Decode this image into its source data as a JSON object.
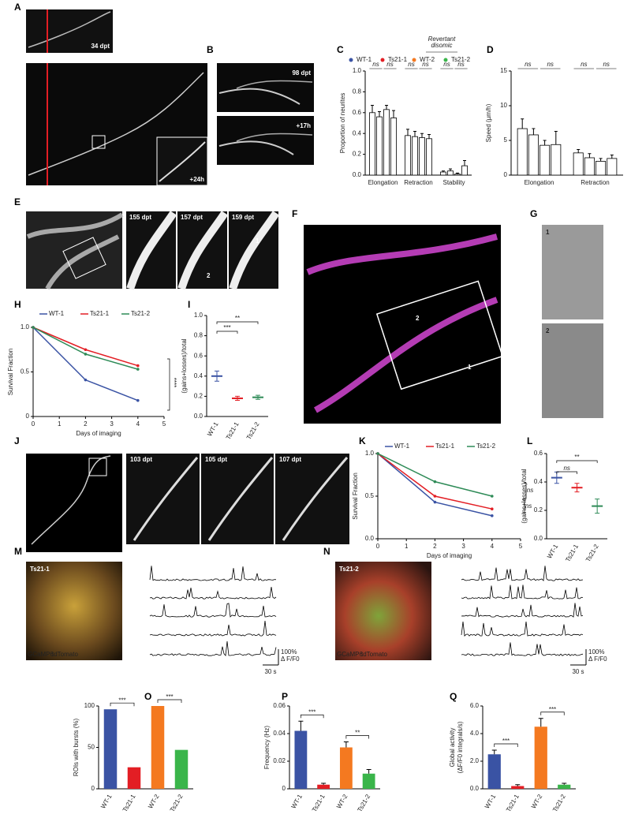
{
  "panel_labels": [
    "A",
    "B",
    "C",
    "D",
    "E",
    "F",
    "G",
    "H",
    "I",
    "J",
    "K",
    "L",
    "M",
    "N",
    "O",
    "P",
    "Q"
  ],
  "images": {
    "A": [
      "34 dpt",
      "+24h"
    ],
    "B": [
      "98 dpt",
      "+17h"
    ],
    "E": [
      "155 dpt",
      "157 dpt",
      "159 dpt",
      "1",
      "2"
    ],
    "F": [
      "2",
      "1"
    ],
    "G": [
      "1",
      "2"
    ],
    "J": [
      "103 dpt",
      "105 dpt",
      "107 dpt"
    ],
    "M": [
      "Ts21-1",
      "GCaMP6",
      "tdTomato",
      "100%",
      "Δ F/F0",
      "30 s"
    ],
    "N": [
      "Ts21-2",
      "GCaMP6",
      "tdTomato",
      "100%",
      "Δ F/F0",
      "30 s"
    ]
  },
  "chart_data": [
    {
      "type": "bar",
      "ylabel": "Proportion of neurites",
      "legend_note": [
        "Revertant",
        "disomic"
      ],
      "categories": [
        "Elongation",
        "Retraction",
        "Stability"
      ],
      "series": [
        {
          "name": "WT-1",
          "color": "#3a53a4",
          "values": [
            0.6,
            0.38,
            0.03
          ],
          "errors": [
            0.07,
            0.06,
            0.01
          ]
        },
        {
          "name": "Ts21-1",
          "color": "#e31e24",
          "values": [
            0.56,
            0.37,
            0.04
          ],
          "errors": [
            0.05,
            0.05,
            0.02
          ]
        },
        {
          "name": "WT-2",
          "color": "#f47920",
          "values": [
            0.63,
            0.36,
            0.01
          ],
          "errors": [
            0.04,
            0.04,
            0.01
          ]
        },
        {
          "name": "Ts21-2",
          "color": "#3ab54a",
          "values": [
            0.55,
            0.35,
            0.09
          ],
          "errors": [
            0.07,
            0.04,
            0.05
          ]
        }
      ],
      "ylim": [
        0,
        1
      ],
      "yticks": [
        {
          "value": 0,
          "label": "0.0"
        },
        0.2,
        0.4,
        0.6,
        0.8,
        {
          "value": 1,
          "label": "1.0"
        }
      ],
      "annotations": [
        "ns",
        "ns",
        "ns",
        "ns",
        "ns",
        "ns"
      ]
    },
    {
      "type": "bar",
      "ylabel": "Speed (µm/h)",
      "categories": [
        "Elongation",
        "Retraction"
      ],
      "series": [
        {
          "name": "WT-1",
          "color": "#3a53a4",
          "values": [
            6.7,
            3.2
          ],
          "errors": [
            1.4,
            0.5
          ]
        },
        {
          "name": "Ts21-1",
          "color": "#e31e24",
          "values": [
            5.8,
            2.5
          ],
          "errors": [
            0.9,
            0.6
          ]
        },
        {
          "name": "WT-2",
          "color": "#f47920",
          "values": [
            4.3,
            2.0
          ],
          "errors": [
            0.7,
            0.4
          ]
        },
        {
          "name": "Ts21-2",
          "color": "#3ab54a",
          "values": [
            4.4,
            2.4
          ],
          "errors": [
            1.9,
            0.5
          ]
        }
      ],
      "ylim": [
        0,
        15
      ],
      "yticks": [
        0,
        5,
        10,
        15
      ],
      "annotations": [
        "ns",
        "ns",
        "ns",
        "ns"
      ]
    },
    {
      "type": "line",
      "xlabel": "Days of imaging",
      "ylabel": "Survival Fraction",
      "x": [
        0,
        2,
        4
      ],
      "series": [
        {
          "name": "WT-1",
          "color": "#3a53a4",
          "values": [
            1,
            0.41,
            0.18
          ]
        },
        {
          "name": "Ts21-1",
          "color": "#e31e24",
          "values": [
            1,
            0.75,
            0.57
          ]
        },
        {
          "name": "Ts21-2",
          "color": "#2e8b57",
          "values": [
            1,
            0.7,
            0.53
          ]
        }
      ],
      "xlim": [
        0,
        5
      ],
      "xticks": [
        0,
        1,
        2,
        3,
        4,
        5
      ],
      "ylim": [
        0,
        1
      ],
      "yticks": [
        0,
        0.5,
        {
          "value": 1,
          "label": "1.0"
        }
      ],
      "annotations": [
        "****"
      ]
    },
    {
      "type": "scatter",
      "ylabel": "(gains+losses)/total",
      "categories": [
        "WT-1",
        "Ts21-1",
        "Ts21-2"
      ],
      "values": [
        0.4,
        0.18,
        0.19
      ],
      "errors": [
        0.05,
        0.02,
        0.02
      ],
      "colors": [
        "#3a53a4",
        "#e31e24",
        "#2e8b57"
      ],
      "ylim": [
        0,
        1
      ],
      "yticks": [
        {
          "value": 0,
          "label": "0.0"
        },
        0.2,
        0.4,
        0.6,
        0.8,
        {
          "value": 1,
          "label": "1.0"
        }
      ],
      "annotations": [
        "***",
        "**"
      ]
    },
    {
      "type": "line",
      "xlabel": "Days of imaging",
      "ylabel": "Survival Fraction",
      "x": [
        0,
        2,
        4
      ],
      "series": [
        {
          "name": "WT-1",
          "color": "#3a53a4",
          "values": [
            1,
            0.43,
            0.27
          ]
        },
        {
          "name": "Ts21-1",
          "color": "#e31e24",
          "values": [
            1,
            0.5,
            0.35
          ]
        },
        {
          "name": "Ts21-2",
          "color": "#2e8b57",
          "values": [
            1,
            0.67,
            0.5
          ]
        }
      ],
      "xlim": [
        0,
        5
      ],
      "xticks": [
        0,
        1,
        2,
        3,
        4,
        5
      ],
      "ylim": [
        0,
        1
      ],
      "yticks": [
        {
          "value": 0,
          "label": "0.0"
        },
        0.5,
        {
          "value": 1,
          "label": "1.0"
        }
      ],
      "annotations": [
        "ns",
        "ns"
      ]
    },
    {
      "type": "scatter",
      "ylabel": "(gains+losses)/total",
      "categories": [
        "WT-1",
        "Ts21-1",
        "Ts21-2"
      ],
      "values": [
        0.43,
        0.36,
        0.23
      ],
      "errors": [
        0.04,
        0.03,
        0.05
      ],
      "colors": [
        "#3a53a4",
        "#e31e24",
        "#2e8b57"
      ],
      "ylim": [
        0,
        0.6
      ],
      "yticks": [
        {
          "value": 0,
          "label": "0.0"
        },
        0.2,
        0.4,
        0.6
      ],
      "annotations": [
        "ns",
        "**"
      ]
    },
    {
      "type": "bar",
      "ylabel": "ROIs with bursts (%)",
      "categories": [
        "WT-1",
        "Ts21-1",
        "WT-2",
        "Ts21-2"
      ],
      "values": [
        96,
        26,
        100,
        47
      ],
      "colors": [
        "#3a53a4",
        "#e31e24",
        "#f47920",
        "#3ab54a"
      ],
      "ylim": [
        0,
        100
      ],
      "yticks": [
        0,
        50,
        100
      ],
      "annotations": [
        "***",
        "***"
      ]
    },
    {
      "type": "bar",
      "ylabel": "Frequency (Hz)",
      "categories": [
        "WT-1",
        "Ts21-1",
        "WT-2",
        "Ts21-2"
      ],
      "values": [
        0.042,
        0.003,
        0.03,
        0.011
      ],
      "errors": [
        0.007,
        0.001,
        0.004,
        0.003
      ],
      "colors": [
        "#3a53a4",
        "#e31e24",
        "#f47920",
        "#3ab54a"
      ],
      "ylim": [
        0,
        0.06
      ],
      "yticks": [
        0,
        0.02,
        0.04,
        0.06
      ],
      "annotations": [
        "***",
        "**"
      ]
    },
    {
      "type": "bar",
      "ylabel": [
        "Global activity",
        "(ΔF/F0 integrals/s)"
      ],
      "categories": [
        "WT-1",
        "Ts21-1",
        "WT-2",
        "Ts21-2"
      ],
      "values": [
        2.5,
        0.2,
        4.5,
        0.3
      ],
      "errors": [
        0.3,
        0.1,
        0.6,
        0.1
      ],
      "colors": [
        "#3a53a4",
        "#e31e24",
        "#f47920",
        "#3ab54a"
      ],
      "ylim": [
        0,
        6
      ],
      "yticks": [
        {
          "value": 0,
          "label": "0.0"
        },
        {
          "value": 2,
          "label": "2.0"
        },
        {
          "value": 4,
          "label": "4.0"
        },
        {
          "value": 6,
          "label": "6.0"
        }
      ],
      "annotations": [
        "***",
        "***"
      ]
    }
  ]
}
